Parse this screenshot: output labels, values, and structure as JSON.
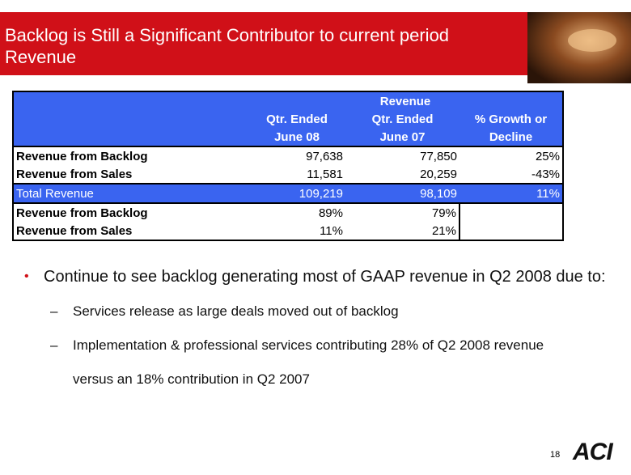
{
  "header": {
    "title_lines": [
      "Backlog is Still a Significant Contributor to current period",
      "Revenue"
    ]
  },
  "table": {
    "group_header": "Revenue",
    "columns": [
      [
        "Qtr. Ended",
        "June 08"
      ],
      [
        "Qtr. Ended",
        "June 07"
      ],
      [
        "% Growth or",
        "Decline"
      ]
    ],
    "rows": [
      [
        "Revenue from Backlog",
        "97,638",
        "77,850",
        "25%"
      ],
      [
        "Revenue from Sales",
        "11,581",
        "20,259",
        "-43%"
      ],
      [
        "Total Revenue",
        "109,219",
        "98,109",
        "11%"
      ],
      [
        "Revenue from Backlog",
        "89%",
        "79%"
      ],
      [
        "Revenue from Sales",
        "11%",
        "21%"
      ]
    ]
  },
  "bullets": [
    {
      "text": "Continue to see backlog generating most of GAAP revenue in Q2 2008 due to:",
      "sub": [
        "Services release as large deals moved out of backlog",
        "Implementation & professional services contributing 28% of Q2 2008 revenue versus an 18% contribution in Q2 2007"
      ]
    }
  ],
  "footer": {
    "page_number": "18",
    "logo": "ACI"
  }
}
